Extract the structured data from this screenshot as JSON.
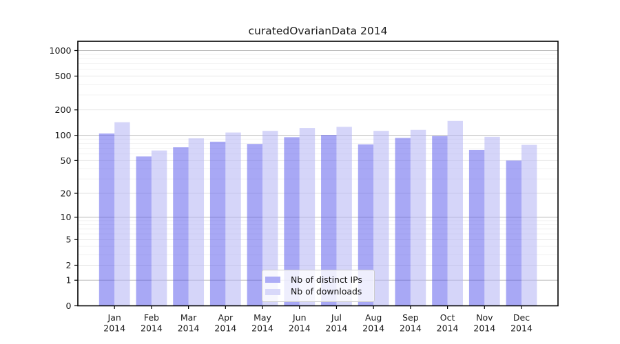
{
  "chart_data": {
    "type": "bar",
    "title": "curatedOvarianData 2014",
    "categories": [
      "Jan",
      "Feb",
      "Mar",
      "Apr",
      "May",
      "Jun",
      "Jul",
      "Aug",
      "Sep",
      "Oct",
      "Nov",
      "Dec"
    ],
    "x_tick_second_line": "2014",
    "series": [
      {
        "name": "Nb of distinct IPs",
        "swatch_color": "#a6a6f5",
        "bar_color": "#5252ec",
        "bar_opacity": 0.5,
        "values": [
          105,
          56,
          72,
          84,
          79,
          95,
          101,
          78,
          93,
          98,
          67,
          50
        ]
      },
      {
        "name": "Nb of downloads",
        "swatch_color": "#d5d5fa",
        "bar_color": "#b2b2f4",
        "bar_opacity": 0.55,
        "values": [
          143,
          66,
          92,
          108,
          113,
          122,
          126,
          113,
          116,
          148,
          96,
          77
        ]
      }
    ],
    "y_axis": {
      "scale": "log1p",
      "tick_values": [
        0,
        1,
        2,
        5,
        10,
        20,
        50,
        100,
        200,
        500,
        1000
      ],
      "range_top": 1000
    },
    "x_axis": {
      "label_lines": 2
    },
    "grid": {
      "enabled": true,
      "major_values": [
        1,
        10,
        100,
        1000
      ],
      "sub_values": [
        2,
        5,
        20,
        50,
        200,
        500
      ],
      "minor_multipliers": [
        3,
        4,
        6,
        7,
        8,
        9
      ],
      "major_color": "#b8b8b8",
      "sub_color": "#e2e2e2",
      "minor_color": "#efefef"
    },
    "legend_position": "inside-bottom-center",
    "colors": {
      "axis": "#000000",
      "tick_label": "#1a1a1a",
      "background": "#ffffff"
    }
  }
}
